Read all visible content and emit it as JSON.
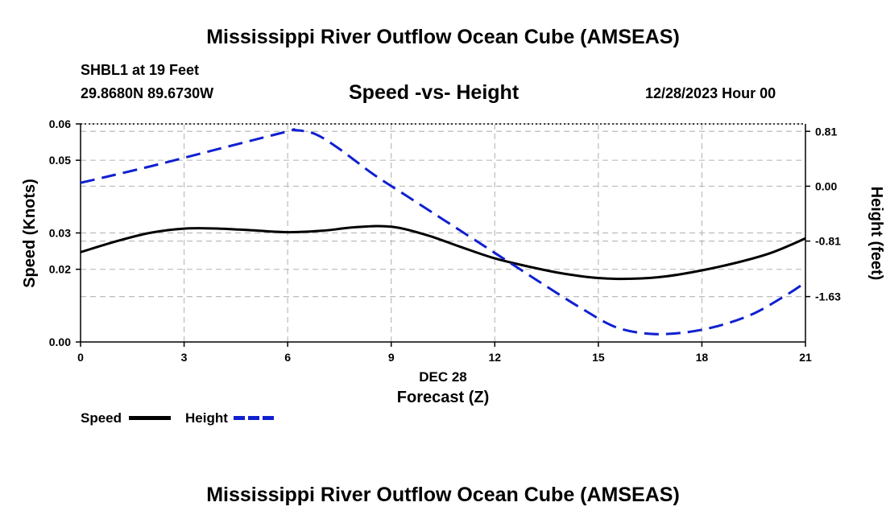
{
  "header": {
    "title": "Mississippi River Outflow Ocean Cube (AMSEAS)",
    "station": "SHBL1 at 19 Feet",
    "coords": "29.8680N  89.6730W",
    "subtitle": "Speed -vs- Height",
    "datetime": "12/28/2023 Hour 00"
  },
  "footer": {
    "title": "Mississippi River Outflow Ocean Cube (AMSEAS)"
  },
  "chart_data": {
    "type": "line",
    "title": "Speed -vs- Height",
    "xlabel": "Forecast (Z)",
    "xlabel_date": "DEC 28",
    "ylabel": "Speed (Knots)",
    "y2label": "Height (feet)",
    "xlim": [
      0,
      21
    ],
    "ylim": [
      0,
      0.06
    ],
    "y2lim": [
      -2.3,
      0.92
    ],
    "x_ticks": [
      0,
      3,
      6,
      9,
      12,
      15,
      18,
      21
    ],
    "x_tick_labels": [
      "0",
      "3",
      "6",
      "9",
      "12",
      "15",
      "18",
      "21"
    ],
    "y_ticks": [
      0.0,
      0.02,
      0.03,
      0.05,
      0.06
    ],
    "y_tick_labels": [
      "0.00",
      "0.02",
      "0.03",
      "0.05",
      "0.06"
    ],
    "y2_ticks": [
      0.81,
      0.0,
      -0.81,
      -1.63
    ],
    "y2_tick_labels": [
      "0.81",
      "0.00",
      "-0.81",
      "-1.63"
    ],
    "grid": true,
    "series": [
      {
        "name": "Speed",
        "axis": "left",
        "color": "#000000",
        "style": "solid",
        "x": [
          0,
          1,
          2,
          3,
          4,
          5,
          6,
          7,
          8,
          9,
          10,
          11,
          12,
          13,
          14,
          15,
          16,
          17,
          18,
          19,
          20,
          21
        ],
        "values": [
          0.0247,
          0.0276,
          0.03,
          0.0312,
          0.0312,
          0.0307,
          0.0302,
          0.0306,
          0.0316,
          0.0317,
          0.0295,
          0.0262,
          0.023,
          0.0207,
          0.0188,
          0.0176,
          0.0174,
          0.0181,
          0.0197,
          0.0218,
          0.0245,
          0.0285
        ]
      },
      {
        "name": "Height",
        "axis": "right",
        "color": "#1020d0",
        "style": "dashed",
        "x": [
          0,
          2,
          4,
          6,
          6.2,
          6.8,
          7.5,
          8.5,
          9.5,
          10.5,
          11.5,
          12.5,
          13.5,
          14.5,
          15.5,
          16.5,
          17.5,
          18.5,
          19.5,
          20.5,
          21
        ],
        "values": [
          0.05,
          0.29,
          0.55,
          0.81,
          0.83,
          0.77,
          0.55,
          0.17,
          -0.16,
          -0.49,
          -0.82,
          -1.15,
          -1.48,
          -1.8,
          -2.08,
          -2.18,
          -2.16,
          -2.06,
          -1.88,
          -1.59,
          -1.42
        ]
      }
    ],
    "legend": [
      {
        "label": "Speed",
        "color": "#000000"
      },
      {
        "label": "Height",
        "color": "#1020d0"
      }
    ],
    "legend_position": "bottom-left"
  }
}
